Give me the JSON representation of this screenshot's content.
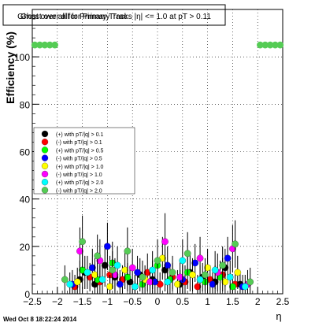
{
  "chart_data": {
    "type": "scatter",
    "title": "Ghost over all for Primary Tracks |η| <= 1.0 at pT > 0.11",
    "title_overlap": "Ghost over all for Primary Trac",
    "xlabel": "η",
    "ylabel": "Efficiency (%)",
    "xlim": [
      -2.5,
      2.5
    ],
    "ylim": [
      0,
      120
    ],
    "x_ticks": [
      -2.5,
      -2,
      -1.5,
      -1,
      -0.5,
      0,
      0.5,
      1,
      1.5,
      2,
      2.5
    ],
    "x_tick_labels": [
      "−2.5",
      "−2",
      "−1.5",
      "−1",
      "−0.5",
      "0",
      "0.5",
      "1",
      "1.5",
      "2",
      "2.5"
    ],
    "y_ticks": [
      0,
      20,
      40,
      60,
      80,
      100
    ],
    "y_tick_labels": [
      "0",
      "20",
      "40",
      "60",
      "80",
      "100"
    ],
    "grid": true,
    "legend_position": "left-middle",
    "series": [
      {
        "name": "(+) with pT/|q| > 0.1",
        "color": "#000000",
        "points": [
          [
            -1.55,
            6,
            8
          ],
          [
            -1.45,
            9,
            7
          ],
          [
            -1.25,
            4,
            6
          ],
          [
            -1.05,
            12,
            9
          ],
          [
            -0.85,
            7,
            7
          ],
          [
            -0.55,
            5,
            6
          ],
          [
            -0.35,
            8,
            7
          ],
          [
            -0.1,
            6,
            8
          ],
          [
            0.15,
            10,
            9
          ],
          [
            0.45,
            4,
            6
          ],
          [
            0.65,
            9,
            8
          ],
          [
            0.9,
            7,
            6
          ],
          [
            1.15,
            5,
            7
          ],
          [
            1.35,
            11,
            8
          ],
          [
            1.65,
            4,
            5
          ]
        ]
      },
      {
        "name": "(-) with pT/|q| > 0.1",
        "color": "#ff0000",
        "points": [
          [
            -1.65,
            3,
            5
          ],
          [
            -1.35,
            7,
            6
          ],
          [
            -1.15,
            5,
            7
          ],
          [
            -0.95,
            8,
            8
          ],
          [
            -0.7,
            6,
            6
          ],
          [
            -0.45,
            3,
            5
          ],
          [
            -0.2,
            9,
            8
          ],
          [
            0.05,
            4,
            5
          ],
          [
            0.3,
            7,
            6
          ],
          [
            0.55,
            5,
            7
          ],
          [
            0.8,
            3,
            5
          ],
          [
            1.05,
            6,
            6
          ],
          [
            1.3,
            8,
            7
          ],
          [
            1.55,
            4,
            5
          ]
        ]
      },
      {
        "name": "(+) with pT/|q| > 0.5",
        "color": "#00ff00",
        "points": [
          [
            -1.5,
            10,
            8
          ],
          [
            -1.2,
            6,
            7
          ],
          [
            -0.9,
            13,
            9
          ],
          [
            -0.6,
            7,
            6
          ],
          [
            -0.3,
            4,
            5
          ],
          [
            0.0,
            12,
            8
          ],
          [
            0.25,
            6,
            6
          ],
          [
            0.6,
            9,
            7
          ],
          [
            0.95,
            5,
            6
          ],
          [
            1.25,
            7,
            7
          ],
          [
            1.5,
            3,
            5
          ]
        ]
      },
      {
        "name": "(-) with pT/|q| > 0.5",
        "color": "#0000ff",
        "points": [
          [
            -1.7,
            4,
            6
          ],
          [
            -1.3,
            11,
            8
          ],
          [
            -1.0,
            20,
            10
          ],
          [
            -0.75,
            4,
            6
          ],
          [
            -0.4,
            9,
            7
          ],
          [
            -0.05,
            5,
            6
          ],
          [
            0.2,
            12,
            8
          ],
          [
            0.5,
            6,
            6
          ],
          [
            0.75,
            13,
            8
          ],
          [
            1.1,
            4,
            5
          ],
          [
            1.4,
            15,
            9
          ],
          [
            1.7,
            3,
            5
          ]
        ]
      },
      {
        "name": "(+) with pT/|q| > 1.0",
        "color": "#ffff00",
        "points": [
          [
            -1.6,
            5,
            6
          ],
          [
            -1.25,
            8,
            7
          ],
          [
            -0.95,
            3,
            5
          ],
          [
            -0.65,
            10,
            8
          ],
          [
            -0.25,
            6,
            6
          ],
          [
            0.1,
            15,
            9
          ],
          [
            0.4,
            4,
            6
          ],
          [
            0.7,
            8,
            7
          ],
          [
            1.0,
            11,
            8
          ],
          [
            1.35,
            5,
            6
          ],
          [
            1.6,
            9,
            7
          ]
        ]
      },
      {
        "name": "(-) with pT/|q| > 1.0",
        "color": "#ff00ff",
        "points": [
          [
            -1.55,
            18,
            10
          ],
          [
            -1.15,
            14,
            9
          ],
          [
            -0.85,
            8,
            7
          ],
          [
            -0.5,
            11,
            8
          ],
          [
            -0.15,
            5,
            6
          ],
          [
            0.15,
            22,
            12
          ],
          [
            0.45,
            7,
            7
          ],
          [
            0.85,
            15,
            9
          ],
          [
            1.2,
            9,
            8
          ],
          [
            1.5,
            19,
            10
          ],
          [
            1.8,
            4,
            6
          ]
        ]
      },
      {
        "name": "(+) with pT/|q| > 2.0",
        "color": "#00ffff",
        "points": [
          [
            -1.75,
            4,
            5
          ],
          [
            -1.4,
            9,
            7
          ],
          [
            -1.1,
            6,
            6
          ],
          [
            -0.8,
            12,
            8
          ],
          [
            -0.45,
            3,
            5
          ],
          [
            -0.1,
            10,
            8
          ],
          [
            0.2,
            5,
            6
          ],
          [
            0.5,
            14,
            9
          ],
          [
            0.85,
            6,
            6
          ],
          [
            1.15,
            10,
            8
          ],
          [
            1.45,
            7,
            7
          ],
          [
            1.75,
            3,
            5
          ]
        ]
      },
      {
        "name": "(-) with pT/|q| > 2.0",
        "color": "#55cc55",
        "points": [
          [
            -1.85,
            6,
            6
          ],
          [
            -1.5,
            22,
            11
          ],
          [
            -1.2,
            16,
            9
          ],
          [
            -0.9,
            10,
            8
          ],
          [
            -0.6,
            18,
            10
          ],
          [
            -0.3,
            7,
            7
          ],
          [
            0.0,
            14,
            9
          ],
          [
            0.3,
            9,
            7
          ],
          [
            0.6,
            17,
            9
          ],
          [
            0.95,
            8,
            7
          ],
          [
            1.3,
            12,
            8
          ],
          [
            1.55,
            21,
            10
          ],
          [
            1.85,
            5,
            6
          ]
        ]
      }
    ],
    "overflow_row": {
      "series": "(-) with pT/|q| > 2.0",
      "y": 105,
      "x": [
        -2.45,
        -2.35,
        -2.25,
        -2.15,
        -2.05,
        2.05,
        2.15,
        2.25,
        2.35,
        2.45
      ]
    }
  },
  "footer": {
    "timestamp": "Wed Oct  8 18:22:24 2014"
  }
}
